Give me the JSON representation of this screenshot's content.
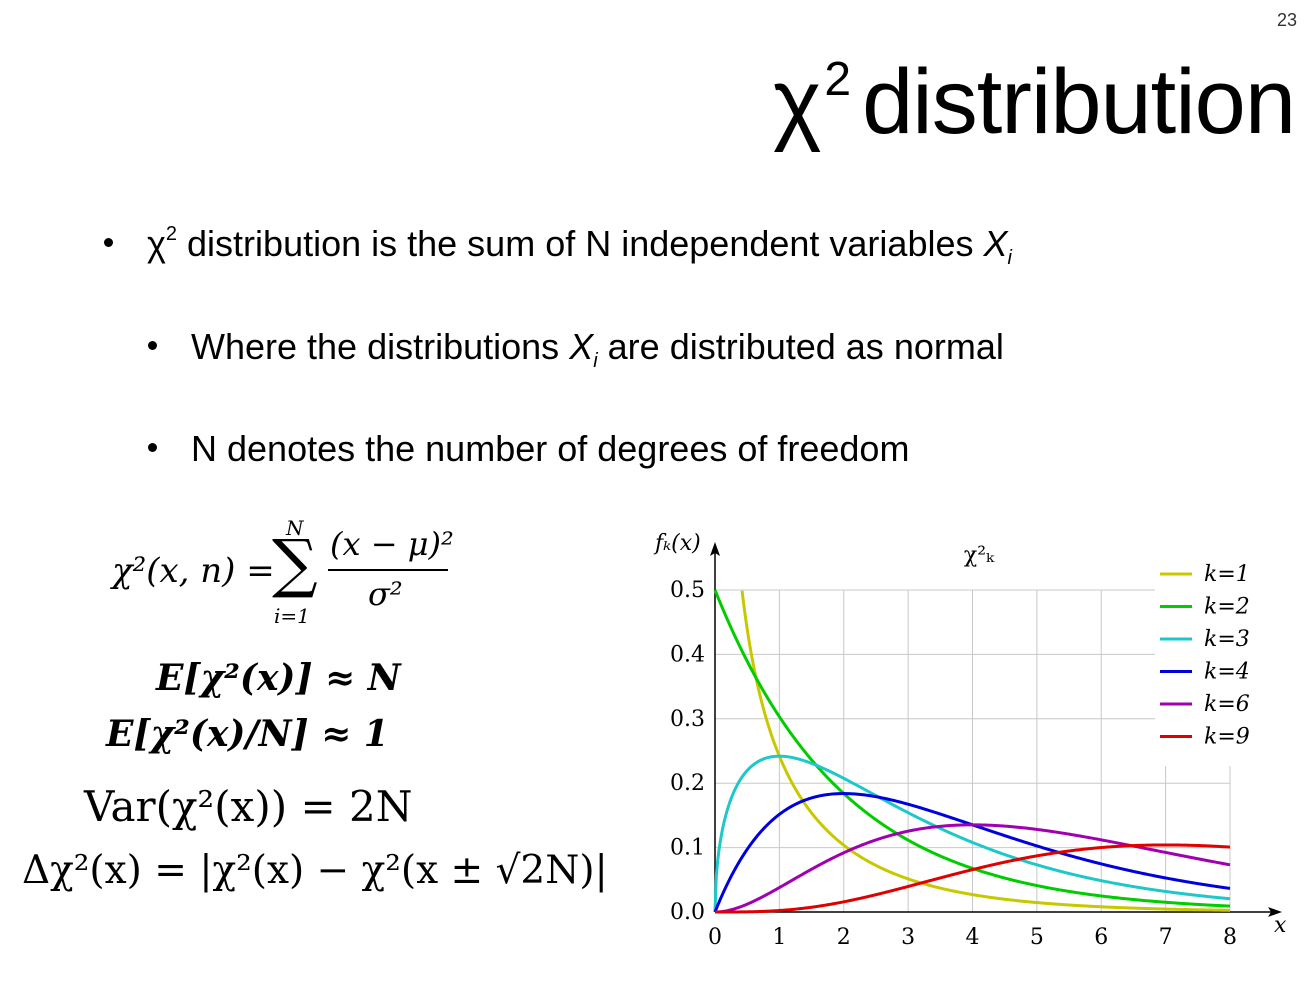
{
  "slide_number": "23",
  "title": {
    "symbol": "χ",
    "sup": "2",
    "text": "distribution"
  },
  "bullets": [
    {
      "prefix": "χ",
      "sup": "2",
      "text": " distribution is the sum of N independent variables ",
      "var": "X",
      "sub": "i",
      "suffix": ""
    },
    {
      "prefix": "Where the distributions ",
      "var": "X",
      "sub": "i",
      "suffix": " are distributed as normal"
    },
    {
      "text": "N denotes the number of degrees of freedom"
    }
  ],
  "equations": {
    "sum": {
      "lhs": "χ²(x, n) =",
      "sum_symbol": "∑",
      "upper": "N",
      "lower": "i=1",
      "numerator": "(x − μ)²",
      "denominator": "σ²"
    },
    "expectation": "E[χ²(x)] ≈ N",
    "normalized_expectation": "E[χ²(x)/N] ≈ 1",
    "variance": "Var(χ²(x)) = 2N",
    "delta": "Δχ²(x) = |χ²(x) − χ²(x ± √2N)|"
  },
  "chart_data": {
    "type": "line",
    "title": "χ²ₖ",
    "ylabel": "fₖ(x)",
    "xlabel": "x",
    "xlim": [
      0,
      8
    ],
    "ylim": [
      0,
      0.5
    ],
    "x_ticks": [
      "0",
      "1",
      "2",
      "3",
      "4",
      "5",
      "6",
      "7",
      "8"
    ],
    "y_ticks": [
      "0.0",
      "0.1",
      "0.2",
      "0.3",
      "0.4",
      "0.5"
    ],
    "grid": true,
    "legend_position": "top-right",
    "x": [
      0,
      0.5,
      1,
      1.5,
      2,
      2.5,
      3,
      3.5,
      4,
      4.5,
      5,
      5.5,
      6,
      6.5,
      7,
      7.5,
      8
    ],
    "series": [
      {
        "name": "k=1",
        "k": 1,
        "color": "#c8c800",
        "values": [
          null,
          0.439,
          0.242,
          0.154,
          0.104,
          0.072,
          0.051,
          0.037,
          0.027,
          0.02,
          0.015,
          0.011,
          0.008,
          0.006,
          0.005,
          0.004,
          0.003
        ]
      },
      {
        "name": "k=2",
        "k": 2,
        "color": "#00cc00",
        "values": [
          0.5,
          0.389,
          0.303,
          0.236,
          0.184,
          0.143,
          0.112,
          0.087,
          0.068,
          0.053,
          0.041,
          0.032,
          0.025,
          0.019,
          0.015,
          0.012,
          0.009
        ]
      },
      {
        "name": "k=3",
        "k": 3,
        "color": "#1ec8c8",
        "values": [
          0.0,
          0.22,
          0.242,
          0.231,
          0.208,
          0.18,
          0.154,
          0.129,
          0.108,
          0.089,
          0.073,
          0.06,
          0.049,
          0.039,
          0.032,
          0.026,
          0.021
        ]
      },
      {
        "name": "k=4",
        "k": 4,
        "color": "#0000dd",
        "values": [
          0.0,
          0.097,
          0.152,
          0.177,
          0.184,
          0.179,
          0.167,
          0.152,
          0.135,
          0.119,
          0.103,
          0.088,
          0.075,
          0.063,
          0.053,
          0.044,
          0.037
        ]
      },
      {
        "name": "k=6",
        "k": 6,
        "color": "#a000b0",
        "values": [
          0.0,
          0.012,
          0.038,
          0.066,
          0.092,
          0.112,
          0.126,
          0.133,
          0.135,
          0.134,
          0.128,
          0.121,
          0.112,
          0.102,
          0.093,
          0.083,
          0.073
        ]
      },
      {
        "name": "k=9",
        "k": 9,
        "color": "#e00000",
        "values": [
          0.0,
          0.0003,
          0.003,
          0.01,
          0.022,
          0.036,
          0.051,
          0.066,
          0.078,
          0.089,
          0.097,
          0.101,
          0.104,
          0.104,
          0.103,
          0.1,
          0.096
        ]
      }
    ]
  }
}
